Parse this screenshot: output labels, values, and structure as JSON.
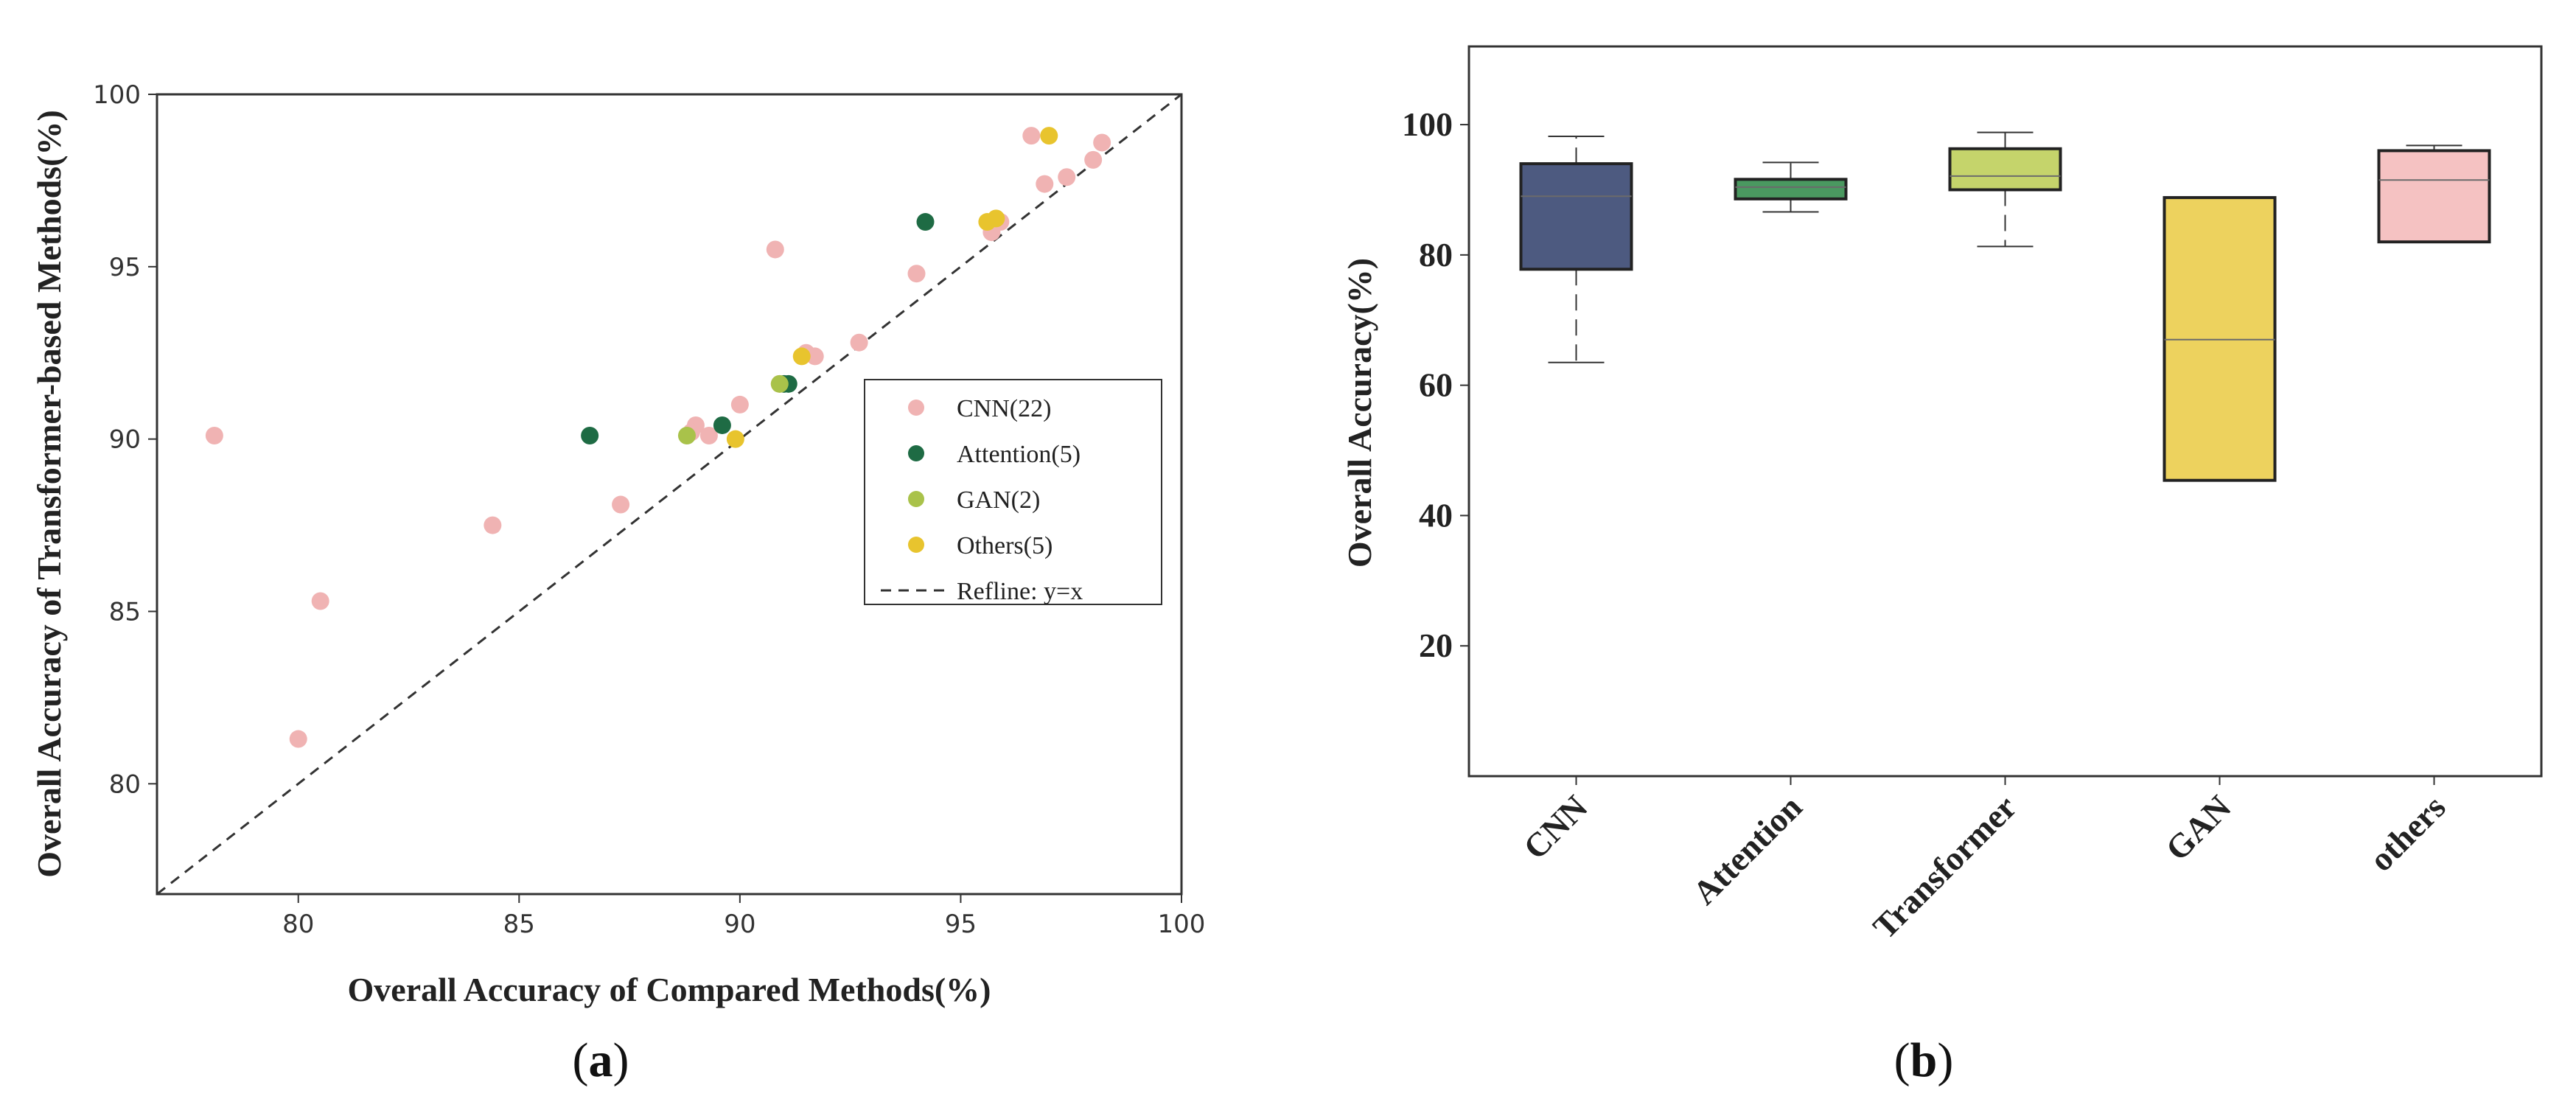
{
  "chart_data": [
    {
      "panel": "a",
      "type": "scatter",
      "title": "",
      "panel_label": {
        "open": "(",
        "letter": "a",
        "close": ")"
      },
      "xlabel": "Overall Accuracy of Compared Methods(%)",
      "ylabel": "Overall Accuracy of Transformer-based Methods(%)",
      "xlim": [
        76.8,
        100
      ],
      "ylim": [
        76.8,
        100
      ],
      "xticks": [
        80,
        85,
        90,
        95,
        100
      ],
      "yticks": [
        80,
        85,
        90,
        95,
        100
      ],
      "refline": {
        "label": "Refline: y=x",
        "slope": 1,
        "intercept": 0
      },
      "legend_position": "center-right",
      "series": [
        {
          "name": "CNN(22)",
          "color": "#F0B3B3",
          "points": [
            [
              78.1,
              90.1
            ],
            [
              80.0,
              81.3
            ],
            [
              80.5,
              85.3
            ],
            [
              84.4,
              87.5
            ],
            [
              87.3,
              88.1
            ],
            [
              89.0,
              90.4
            ],
            [
              89.3,
              90.1
            ],
            [
              90.0,
              91.0
            ],
            [
              90.8,
              95.5
            ],
            [
              90.9,
              91.6
            ],
            [
              91.7,
              92.4
            ],
            [
              92.7,
              92.8
            ],
            [
              94.0,
              94.8
            ],
            [
              95.7,
              96.0
            ],
            [
              95.9,
              96.3
            ],
            [
              96.6,
              98.8
            ],
            [
              96.9,
              97.4
            ],
            [
              97.4,
              97.6
            ],
            [
              98.0,
              98.1
            ],
            [
              98.2,
              98.6
            ],
            [
              88.9,
              90.2
            ],
            [
              91.5,
              92.5
            ]
          ]
        },
        {
          "name": "Attention(5)",
          "color": "#1E6B44",
          "points": [
            [
              86.6,
              90.1
            ],
            [
              89.6,
              90.4
            ],
            [
              91.0,
              91.6
            ],
            [
              91.1,
              91.6
            ],
            [
              94.2,
              96.3
            ]
          ]
        },
        {
          "name": "GAN(2)",
          "color": "#A9C24A",
          "points": [
            [
              88.8,
              90.1
            ],
            [
              90.9,
              91.6
            ]
          ]
        },
        {
          "name": "Others(5)",
          "color": "#E8C42E",
          "points": [
            [
              89.9,
              90.0
            ],
            [
              91.4,
              92.4
            ],
            [
              95.6,
              96.3
            ],
            [
              95.8,
              96.4
            ],
            [
              97.0,
              98.8
            ]
          ]
        }
      ]
    },
    {
      "panel": "b",
      "type": "box",
      "title": "",
      "panel_label": {
        "open": "(",
        "letter": "b",
        "close": ")"
      },
      "xlabel": "",
      "ylabel": "Overall Accuracy(%)",
      "ylim": [
        0,
        112
      ],
      "yticks": [
        20,
        40,
        60,
        80,
        100
      ],
      "categories": [
        "CNN",
        "Attention",
        "Transformer",
        "GAN",
        "others"
      ],
      "boxes": [
        {
          "name": "CNN",
          "whisker_low": 63.5,
          "q1": 77.8,
          "median": 89.0,
          "q3": 94.0,
          "whisker_high": 98.2,
          "color": "#4D5A80"
        },
        {
          "name": "Attention",
          "whisker_low": 86.6,
          "q1": 88.6,
          "median": 90.4,
          "q3": 91.6,
          "whisker_high": 94.2,
          "color": "#4A9960"
        },
        {
          "name": "Transformer",
          "whisker_low": 81.3,
          "q1": 90.0,
          "median": 92.1,
          "q3": 96.3,
          "whisker_high": 98.8,
          "color": "#C5D46B"
        },
        {
          "name": "GAN",
          "whisker_low": 45.4,
          "q1": 45.4,
          "median": 67.0,
          "q3": 88.8,
          "whisker_high": 88.8,
          "color": "#EDD25E"
        },
        {
          "name": "others",
          "whisker_low": 82.0,
          "q1": 82.0,
          "median": 91.5,
          "q3": 96.0,
          "whisker_high": 96.8,
          "color": "#F5C2C2"
        }
      ]
    }
  ]
}
